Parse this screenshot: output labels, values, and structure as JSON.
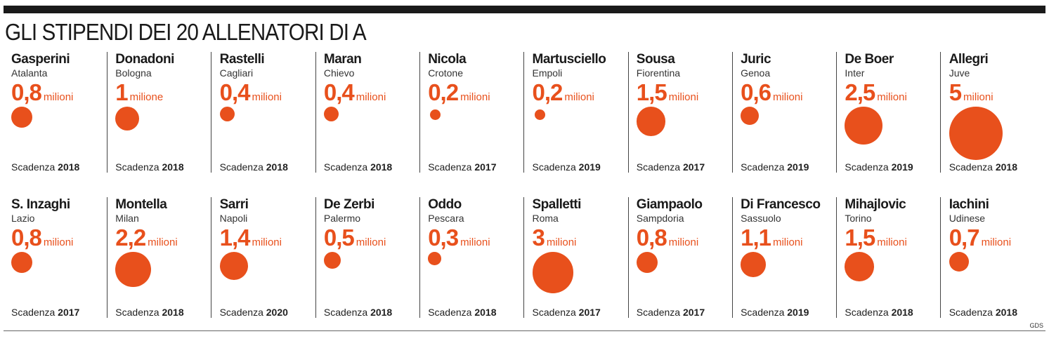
{
  "title": "GLI STIPENDI DEI 20 ALLENATORI DI A",
  "credit": "GDS",
  "accent_color": "#e8501c",
  "chart_data": {
    "type": "bubble",
    "title": "GLI STIPENDI DEI 20 ALLENATORI DI A",
    "unit_plural": "milioni",
    "unit_singular": "milione",
    "deadline_label": "Scadenza",
    "coaches": [
      {
        "name": "Gasperini",
        "team": "Atalanta",
        "salary": 0.8,
        "salary_label": "0,8",
        "unit": "milioni",
        "deadline": "2018"
      },
      {
        "name": "Donadoni",
        "team": "Bologna",
        "salary": 1,
        "salary_label": "1",
        "unit": "milione",
        "deadline": "2018"
      },
      {
        "name": "Rastelli",
        "team": "Cagliari",
        "salary": 0.4,
        "salary_label": "0,4",
        "unit": "milioni",
        "deadline": "2018"
      },
      {
        "name": "Maran",
        "team": "Chievo",
        "salary": 0.4,
        "salary_label": "0,4",
        "unit": "milioni",
        "deadline": "2018"
      },
      {
        "name": "Nicola",
        "team": "Crotone",
        "salary": 0.2,
        "salary_label": "0,2",
        "unit": "milioni",
        "deadline": "2017"
      },
      {
        "name": "Martusciello",
        "team": "Empoli",
        "salary": 0.2,
        "salary_label": "0,2",
        "unit": "milioni",
        "deadline": "2019"
      },
      {
        "name": "Sousa",
        "team": "Fiorentina",
        "salary": 1.5,
        "salary_label": "1,5",
        "unit": "milioni",
        "deadline": "2017"
      },
      {
        "name": "Juric",
        "team": "Genoa",
        "salary": 0.6,
        "salary_label": "0,6",
        "unit": "milioni",
        "deadline": "2019"
      },
      {
        "name": "De Boer",
        "team": "Inter",
        "salary": 2.5,
        "salary_label": "2,5",
        "unit": "milioni",
        "deadline": "2019"
      },
      {
        "name": "Allegri",
        "team": "Juve",
        "salary": 5,
        "salary_label": "5",
        "unit": "milioni",
        "deadline": "2018"
      },
      {
        "name": "S. Inzaghi",
        "team": "Lazio",
        "salary": 0.8,
        "salary_label": "0,8",
        "unit": "milioni",
        "deadline": "2017"
      },
      {
        "name": "Montella",
        "team": "Milan",
        "salary": 2.2,
        "salary_label": "2,2",
        "unit": "milioni",
        "deadline": "2018"
      },
      {
        "name": "Sarri",
        "team": "Napoli",
        "salary": 1.4,
        "salary_label": "1,4",
        "unit": "milioni",
        "deadline": "2020"
      },
      {
        "name": "De Zerbi",
        "team": "Palermo",
        "salary": 0.5,
        "salary_label": "0,5",
        "unit": "milioni",
        "deadline": "2018"
      },
      {
        "name": "Oddo",
        "team": "Pescara",
        "salary": 0.3,
        "salary_label": "0,3",
        "unit": "milioni",
        "deadline": "2018"
      },
      {
        "name": "Spalletti",
        "team": "Roma",
        "salary": 3,
        "salary_label": "3",
        "unit": "milioni",
        "deadline": "2017"
      },
      {
        "name": "Giampaolo",
        "team": "Sampdoria",
        "salary": 0.8,
        "salary_label": "0,8",
        "unit": "milioni",
        "deadline": "2017"
      },
      {
        "name": "Di Francesco",
        "team": "Sassuolo",
        "salary": 1.1,
        "salary_label": "1,1",
        "unit": "milioni",
        "deadline": "2019"
      },
      {
        "name": "Mihajlovic",
        "team": "Torino",
        "salary": 1.5,
        "salary_label": "1,5",
        "unit": "milioni",
        "deadline": "2018"
      },
      {
        "name": "Iachini",
        "team": "Udinese",
        "salary": 0.7,
        "salary_label": "0,7",
        "unit": "milioni",
        "deadline": "2018"
      }
    ]
  }
}
